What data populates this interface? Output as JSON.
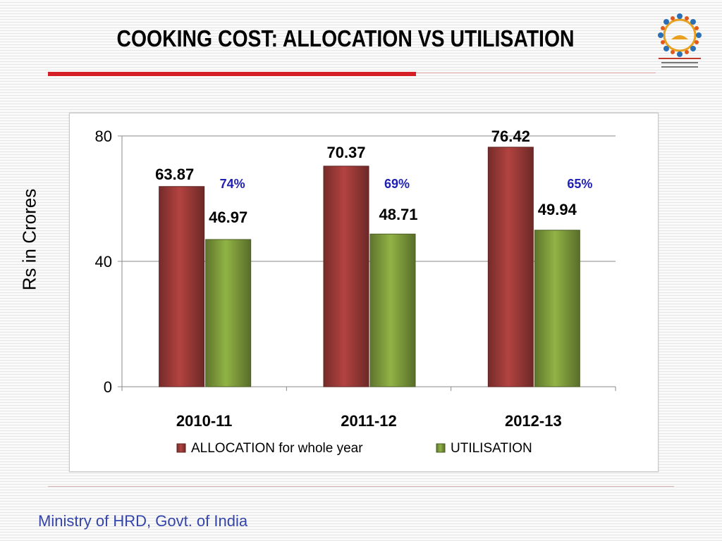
{
  "slide": {
    "title": "COOKING COST: ALLOCATION VS UTILISATION",
    "footer": "Ministry of HRD, Govt. of India",
    "logo_icon": "mid-day-meal-scheme-logo",
    "accent_color": "#d41f26"
  },
  "chart_data": {
    "type": "bar",
    "categories": [
      "2010-11",
      "2011-12",
      "2012-13"
    ],
    "series": [
      {
        "name": "ALLOCATION for whole year",
        "values": [
          63.87,
          70.37,
          76.42
        ],
        "labels": [
          "63.87",
          "70.37",
          "76.42"
        ],
        "color": "#9c3a38"
      },
      {
        "name": "UTILISATION",
        "values": [
          46.97,
          48.71,
          49.94
        ],
        "labels": [
          "46.97",
          "48.71",
          "49.94"
        ],
        "color": "#7e9c3c"
      }
    ],
    "annotations": [
      "74%",
      "69%",
      "65%"
    ],
    "annotation_color": "#1f1fb4",
    "ylabel": "Rs in Crores",
    "ylim": [
      0,
      80
    ],
    "yticks": [
      0,
      40,
      80
    ],
    "ytick_labels": [
      "0",
      "40",
      "80"
    ],
    "grid": true,
    "legend": "bottom"
  }
}
